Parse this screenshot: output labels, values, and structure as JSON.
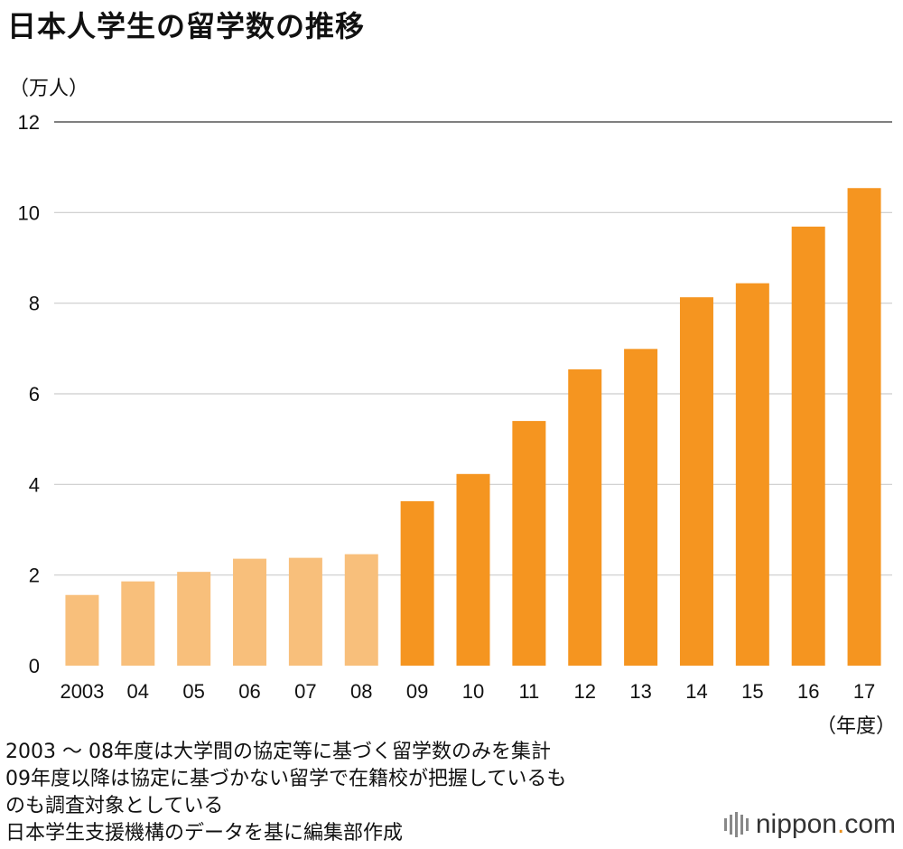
{
  "title": "日本人学生の留学数の推移",
  "unit_label": "（万人）",
  "x_unit_label": "（年度）",
  "notes": [
    "2003 ～ 08年度は大学間の協定等に基づく留学数のみを集計",
    "09年度以降は協定に基づかない留学で在籍校が把握しているも",
    "のも調査対象としている",
    "日本学生支援機構のデータを基に編集部作成"
  ],
  "brand": {
    "name": "nippon",
    "dot": ".",
    "suffix": "com"
  },
  "colors": {
    "light": "#f8bf7b",
    "dark": "#f59520",
    "grid": "#cccccc",
    "top_line": "#555555"
  },
  "chart_data": {
    "type": "bar",
    "categories": [
      "2003",
      "04",
      "05",
      "06",
      "07",
      "08",
      "09",
      "10",
      "11",
      "12",
      "13",
      "14",
      "15",
      "16",
      "17"
    ],
    "values": [
      1.56,
      1.86,
      2.07,
      2.36,
      2.38,
      2.46,
      3.63,
      4.23,
      5.4,
      6.54,
      6.99,
      8.13,
      8.44,
      9.69,
      10.54
    ],
    "color_groups": [
      "light",
      "light",
      "light",
      "light",
      "light",
      "light",
      "dark",
      "dark",
      "dark",
      "dark",
      "dark",
      "dark",
      "dark",
      "dark",
      "dark"
    ],
    "yticks": [
      0,
      2,
      4,
      6,
      8,
      10,
      12
    ],
    "ylim": [
      0,
      12
    ],
    "ylabel": "（万人）",
    "xlabel": "（年度）",
    "title": "日本人学生の留学数の推移"
  }
}
